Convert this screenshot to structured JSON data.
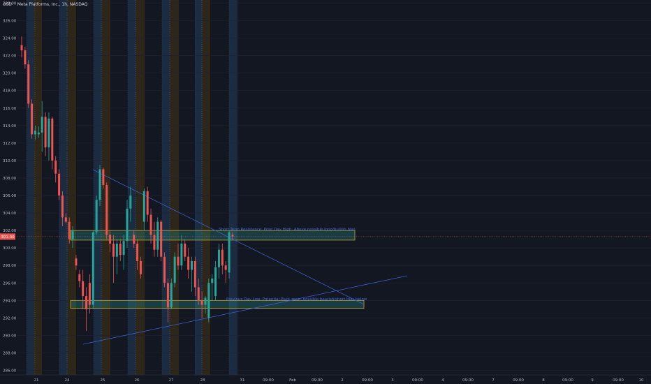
{
  "header": {
    "currency": "USD",
    "symbol_line": "Meta Platforms, Inc., 1h, NASDAQ"
  },
  "colors": {
    "background": "#131722",
    "up": "#26a69a",
    "down": "#ef5350",
    "trendline": "#3c5fd0",
    "zone_fill": "rgba(38,166,154,0.28)",
    "zone_border": "#c8a630",
    "label_text": "#4468e0",
    "price_tag": "#ef5350",
    "premarket_band": "#1b2b40",
    "afterhours_band": "#2e2618"
  },
  "chart_data": {
    "type": "candlestick",
    "y_axis": {
      "range": [
        285.6,
        328.4
      ],
      "ticks": [
        328,
        326,
        324,
        322,
        320,
        318,
        316,
        314,
        312,
        310,
        308,
        306,
        304,
        302,
        300,
        298,
        296,
        294,
        292,
        290,
        288,
        286
      ],
      "tick_labels": [
        "328.00",
        "326.00",
        "324.00",
        "322.00",
        "320.00",
        "318.00",
        "316.00",
        "314.00",
        "312.00",
        "310.00",
        "308.00",
        "306.00",
        "304.00",
        "302.00",
        "300.00",
        "298.00",
        "296.00",
        "294.00",
        "292.00",
        "290.00",
        "288.00",
        "286.00"
      ]
    },
    "x_axis": {
      "labels": [
        "21",
        "24",
        "25",
        "26",
        "27",
        "28",
        "31",
        "09:00",
        "Feb",
        "09:00",
        "2",
        "09:00",
        "3",
        "09:00",
        "4",
        "09:00",
        "7",
        "09:00",
        "8",
        "09:00",
        "9",
        "09:00",
        "10"
      ]
    },
    "current_price": {
      "value": 301.3,
      "label": "301.30"
    },
    "candles": [
      {
        "o": 323.2,
        "h": 324.2,
        "l": 321.8,
        "c": 322.6
      },
      {
        "o": 322.6,
        "h": 323.0,
        "l": 320.5,
        "c": 321.0
      },
      {
        "o": 321.0,
        "h": 321.5,
        "l": 316.0,
        "c": 316.5
      },
      {
        "o": 316.5,
        "h": 317.0,
        "l": 312.5,
        "c": 313.0
      },
      {
        "o": 313.0,
        "h": 314.0,
        "l": 312.4,
        "c": 313.4
      },
      {
        "o": 313.0,
        "h": 313.9,
        "l": 312.6,
        "c": 313.2
      },
      {
        "o": 313.2,
        "h": 316.8,
        "l": 311.0,
        "c": 315.0
      },
      {
        "o": 315.0,
        "h": 315.5,
        "l": 310.5,
        "c": 311.5
      },
      {
        "o": 311.5,
        "h": 315.5,
        "l": 310.0,
        "c": 314.8
      },
      {
        "o": 314.8,
        "h": 315.0,
        "l": 309.0,
        "c": 310.0
      },
      {
        "o": 310.0,
        "h": 310.5,
        "l": 307.5,
        "c": 308.5
      },
      {
        "o": 308.5,
        "h": 309.0,
        "l": 305.5,
        "c": 306.0
      },
      {
        "o": 306.0,
        "h": 306.5,
        "l": 302.5,
        "c": 303.5
      },
      {
        "o": 303.5,
        "h": 304.0,
        "l": 302.8,
        "c": 303.0
      },
      {
        "o": 303.0,
        "h": 303.5,
        "l": 300.5,
        "c": 301.0
      },
      {
        "o": 301.0,
        "h": 302.5,
        "l": 300.0,
        "c": 302.0
      },
      {
        "o": 298.8,
        "h": 299.2,
        "l": 297.5,
        "c": 298.0
      },
      {
        "o": 297.0,
        "h": 297.5,
        "l": 295.5,
        "c": 296.2
      },
      {
        "o": 296.2,
        "h": 297.5,
        "l": 293.0,
        "c": 294.5
      },
      {
        "o": 294.5,
        "h": 295.5,
        "l": 290.5,
        "c": 293.0
      },
      {
        "o": 296.0,
        "h": 297.0,
        "l": 292.5,
        "c": 293.5
      },
      {
        "o": 293.5,
        "h": 302.0,
        "l": 293.0,
        "c": 301.8
      },
      {
        "o": 301.8,
        "h": 306.0,
        "l": 301.5,
        "c": 305.5
      },
      {
        "o": 305.5,
        "h": 309.5,
        "l": 304.8,
        "c": 309.0
      },
      {
        "o": 309.0,
        "h": 309.2,
        "l": 306.8,
        "c": 307.2
      },
      {
        "o": 307.2,
        "h": 307.5,
        "l": 301.0,
        "c": 301.5
      },
      {
        "o": 301.5,
        "h": 302.0,
        "l": 299.5,
        "c": 300.5
      },
      {
        "o": 300.5,
        "h": 301.5,
        "l": 296.0,
        "c": 299.0
      },
      {
        "o": 299.0,
        "h": 301.0,
        "l": 297.0,
        "c": 300.5
      },
      {
        "o": 300.5,
        "h": 301.0,
        "l": 298.5,
        "c": 299.2
      },
      {
        "o": 299.2,
        "h": 301.5,
        "l": 297.5,
        "c": 300.8
      },
      {
        "o": 300.8,
        "h": 305.5,
        "l": 300.0,
        "c": 304.5
      },
      {
        "o": 304.5,
        "h": 307.0,
        "l": 303.0,
        "c": 306.0
      },
      {
        "o": 301.5,
        "h": 302.0,
        "l": 300.0,
        "c": 300.5
      },
      {
        "o": 300.5,
        "h": 301.0,
        "l": 297.5,
        "c": 298.5
      },
      {
        "o": 298.5,
        "h": 299.0,
        "l": 296.5,
        "c": 297.0
      },
      {
        "o": 303.0,
        "h": 306.8,
        "l": 302.0,
        "c": 306.5
      },
      {
        "o": 306.5,
        "h": 307.0,
        "l": 303.0,
        "c": 303.8
      },
      {
        "o": 303.8,
        "h": 304.5,
        "l": 300.5,
        "c": 301.5
      },
      {
        "o": 301.5,
        "h": 303.0,
        "l": 299.0,
        "c": 299.8
      },
      {
        "o": 299.8,
        "h": 303.5,
        "l": 299.0,
        "c": 303.0
      },
      {
        "o": 303.0,
        "h": 303.2,
        "l": 298.5,
        "c": 299.0
      },
      {
        "o": 299.0,
        "h": 299.5,
        "l": 295.5,
        "c": 296.0
      },
      {
        "o": 296.0,
        "h": 296.5,
        "l": 291.5,
        "c": 293.2
      },
      {
        "o": 293.2,
        "h": 296.5,
        "l": 293.0,
        "c": 296.0
      },
      {
        "o": 296.0,
        "h": 299.5,
        "l": 295.5,
        "c": 299.0
      },
      {
        "o": 299.0,
        "h": 300.5,
        "l": 297.5,
        "c": 298.0
      },
      {
        "o": 298.0,
        "h": 301.5,
        "l": 297.5,
        "c": 300.5
      },
      {
        "o": 300.5,
        "h": 301.0,
        "l": 298.5,
        "c": 299.0
      },
      {
        "o": 299.0,
        "h": 300.0,
        "l": 296.5,
        "c": 297.5
      },
      {
        "o": 297.5,
        "h": 299.0,
        "l": 295.0,
        "c": 298.5
      },
      {
        "o": 298.5,
        "h": 299.0,
        "l": 294.5,
        "c": 295.5
      },
      {
        "o": 295.5,
        "h": 296.5,
        "l": 293.5,
        "c": 294.0
      },
      {
        "o": 294.0,
        "h": 295.0,
        "l": 292.0,
        "c": 293.5
      },
      {
        "o": 293.5,
        "h": 294.5,
        "l": 292.5,
        "c": 294.3
      },
      {
        "o": 292.0,
        "h": 296.5,
        "l": 291.5,
        "c": 296.0
      },
      {
        "o": 296.0,
        "h": 297.0,
        "l": 294.0,
        "c": 296.5
      },
      {
        "o": 294.5,
        "h": 298.5,
        "l": 294.0,
        "c": 297.8
      },
      {
        "o": 297.8,
        "h": 300.5,
        "l": 296.5,
        "c": 299.8
      },
      {
        "o": 299.8,
        "h": 300.5,
        "l": 297.0,
        "c": 298.0
      },
      {
        "o": 298.0,
        "h": 298.5,
        "l": 296.0,
        "c": 297.5
      },
      {
        "o": 297.2,
        "h": 302.0,
        "l": 296.5,
        "c": 301.8
      },
      {
        "o": 301.5,
        "h": 301.8,
        "l": 301.0,
        "c": 301.3
      }
    ],
    "zones": [
      {
        "name": "resistance",
        "top": 302.0,
        "bottom": 300.9,
        "label": "Short Term Resistance, Prior Day High, Above possible long/bullish bias"
      },
      {
        "name": "pivot",
        "top": 294.0,
        "bottom": 293.1,
        "label": "Previous Day Low, Potential Pivot zone, possible bearish/short bias below"
      }
    ]
  }
}
